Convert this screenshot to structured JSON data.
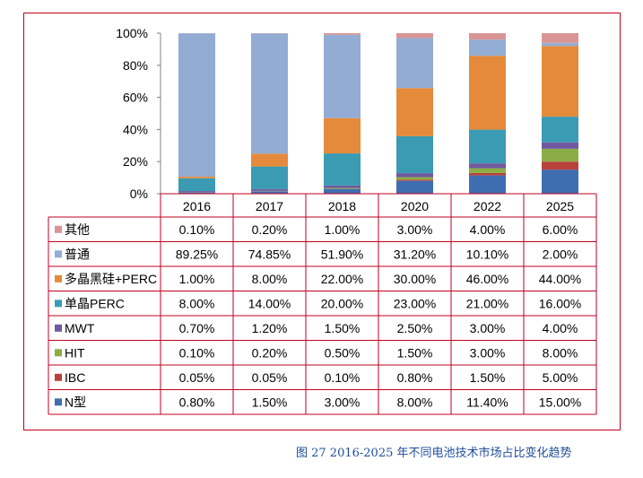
{
  "chart_data": {
    "type": "bar",
    "stacked": true,
    "normalized": true,
    "categories": [
      "2016",
      "2017",
      "2018",
      "2020",
      "2022",
      "2025"
    ],
    "y_ticks": [
      "0%",
      "20%",
      "40%",
      "60%",
      "80%",
      "100%"
    ],
    "ylim": [
      0,
      100
    ],
    "grid": false,
    "legend": "table-below",
    "series": [
      {
        "name": "N型",
        "color": "#3f6eb0",
        "values": [
          0.8,
          1.5,
          3.0,
          8.0,
          11.4,
          15.0
        ],
        "labels": [
          "0.80%",
          "1.50%",
          "3.00%",
          "8.00%",
          "11.40%",
          "15.00%"
        ]
      },
      {
        "name": "IBC",
        "color": "#b8413c",
        "values": [
          0.05,
          0.05,
          0.1,
          0.8,
          1.5,
          5.0
        ],
        "labels": [
          "0.05%",
          "0.05%",
          "0.10%",
          "0.80%",
          "1.50%",
          "5.00%"
        ]
      },
      {
        "name": "HIT",
        "color": "#8cad45",
        "values": [
          0.1,
          0.2,
          0.5,
          1.5,
          3.0,
          8.0
        ],
        "labels": [
          "0.10%",
          "0.20%",
          "0.50%",
          "1.50%",
          "3.00%",
          "8.00%"
        ]
      },
      {
        "name": "MWT",
        "color": "#7059a0",
        "values": [
          0.7,
          1.2,
          1.5,
          2.5,
          3.0,
          4.0
        ],
        "labels": [
          "0.70%",
          "1.20%",
          "1.50%",
          "2.50%",
          "3.00%",
          "4.00%"
        ]
      },
      {
        "name": "单晶PERC",
        "color": "#3a9bb3",
        "values": [
          8.0,
          14.0,
          20.0,
          23.0,
          21.0,
          16.0
        ],
        "labels": [
          "8.00%",
          "14.00%",
          "20.00%",
          "23.00%",
          "21.00%",
          "16.00%"
        ]
      },
      {
        "name": "多晶黑硅+PERC",
        "color": "#e58a3a",
        "values": [
          1.0,
          8.0,
          22.0,
          30.0,
          46.0,
          44.0
        ],
        "labels": [
          "1.00%",
          "8.00%",
          "22.00%",
          "30.00%",
          "46.00%",
          "44.00%"
        ]
      },
      {
        "name": "普通",
        "color": "#93acd3",
        "values": [
          89.25,
          74.85,
          51.9,
          31.2,
          10.1,
          2.0
        ],
        "labels": [
          "89.25%",
          "74.85%",
          "51.90%",
          "31.20%",
          "10.10%",
          "2.00%"
        ]
      },
      {
        "name": "其他",
        "color": "#d99595",
        "values": [
          0.1,
          0.2,
          1.0,
          3.0,
          4.0,
          6.0
        ],
        "labels": [
          "0.10%",
          "0.20%",
          "1.00%",
          "3.00%",
          "4.00%",
          "6.00%"
        ]
      }
    ]
  },
  "caption": "图 27 2016-2025 年不同电池技术市场占比变化趋势"
}
